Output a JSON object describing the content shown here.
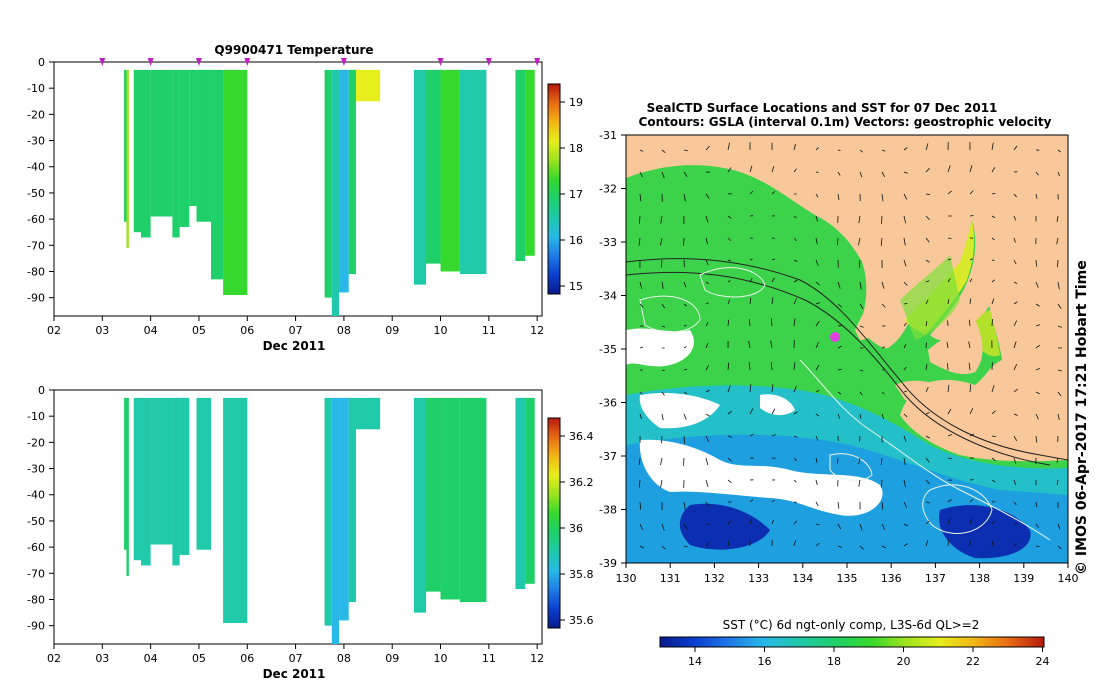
{
  "colors": {
    "land": "#f9c89a",
    "cmap": [
      "#0a1a8c",
      "#0b3fd0",
      "#1e7be6",
      "#29b8e8",
      "#1fc9a9",
      "#1fcf6a",
      "#35d92e",
      "#9be31f",
      "#e6ee1c",
      "#f2b617",
      "#e86a14",
      "#b61a0e"
    ]
  },
  "panel_top": {
    "title": "Q9900471  Temperature",
    "xlabel": "Dec 2011",
    "x_ticks": [
      "02",
      "03",
      "04",
      "05",
      "06",
      "07",
      "08",
      "09",
      "10",
      "11",
      "12"
    ],
    "y_ticks": [
      "0",
      "-10",
      "-20",
      "-30",
      "-40",
      "-50",
      "-60",
      "-70",
      "-80",
      "-90"
    ],
    "cbar_ticks": [
      "19",
      "18",
      "17",
      "16",
      "15"
    ]
  },
  "panel_bottom": {
    "xlabel": "Dec 2011",
    "x_ticks": [
      "02",
      "03",
      "04",
      "05",
      "06",
      "07",
      "08",
      "09",
      "10",
      "11",
      "12"
    ],
    "y_ticks": [
      "0",
      "-10",
      "-20",
      "-30",
      "-40",
      "-50",
      "-60",
      "-70",
      "-80",
      "-90"
    ],
    "cbar_ticks": [
      "36.4",
      "36.2",
      "36",
      "35.8",
      "35.6"
    ]
  },
  "map": {
    "title1": "SealCTD Surface Locations and SST for 07 Dec 2011",
    "title2": "Contours: GSLA (interval 0.1m) Vectors: geostrophic velocity",
    "x_ticks": [
      "130",
      "131",
      "132",
      "133",
      "134",
      "135",
      "136",
      "137",
      "138",
      "139",
      "140"
    ],
    "y_ticks": [
      "-31",
      "-32",
      "-33",
      "-34",
      "-35",
      "-36",
      "-37",
      "-38",
      "-39"
    ],
    "side_label": "© IMOS 06-Apr-2017 17:21 Hobart Time",
    "cbar_title": "SST (°C) 6d ngt-only comp, L3S-6d QL>=2",
    "cbar_ticks": [
      "14",
      "16",
      "18",
      "20",
      "22",
      "24"
    ]
  },
  "chart_data": [
    {
      "type": "heatmap",
      "title": "Q9900471  Temperature",
      "xlabel": "Dec 2011",
      "ylabel": "",
      "xlim": [
        2,
        12.1
      ],
      "ylim": [
        -97,
        0
      ],
      "clim": [
        14.6,
        19.5
      ],
      "profile_days": [
        3,
        4,
        5,
        6,
        8,
        10,
        11,
        12
      ],
      "columns": [
        {
          "x0": 3.45,
          "x1": 3.5,
          "depth": -61,
          "value": 17.0
        },
        {
          "x0": 3.5,
          "x1": 3.55,
          "depth": -71,
          "value": 17.6
        },
        {
          "x0": 3.65,
          "x1": 3.8,
          "depth": -65,
          "value": 16.9
        },
        {
          "x0": 3.8,
          "x1": 4.0,
          "depth": -67,
          "value": 17.0
        },
        {
          "x0": 4.0,
          "x1": 4.45,
          "depth": -59,
          "value": 16.9
        },
        {
          "x0": 4.45,
          "x1": 4.6,
          "depth": -67,
          "value": 17.0
        },
        {
          "x0": 4.6,
          "x1": 4.8,
          "depth": -63,
          "value": 16.9
        },
        {
          "x0": 4.8,
          "x1": 4.95,
          "depth": -55,
          "value": 17.0
        },
        {
          "x0": 4.95,
          "x1": 5.25,
          "depth": -61,
          "value": 16.9
        },
        {
          "x0": 5.25,
          "x1": 5.5,
          "depth": -83,
          "value": 16.9
        },
        {
          "x0": 5.5,
          "x1": 6.0,
          "depth": -89,
          "value": 17.2
        },
        {
          "x0": 7.6,
          "x1": 7.75,
          "depth": -90,
          "value": 16.7
        },
        {
          "x0": 7.75,
          "x1": 7.9,
          "depth": -97,
          "value": 16.2
        },
        {
          "x0": 7.9,
          "x1": 8.1,
          "depth": -88,
          "value": 15.8
        },
        {
          "x0": 8.1,
          "x1": 8.25,
          "depth": -81,
          "value": 16.8
        },
        {
          "x0": 8.25,
          "x1": 8.75,
          "depth": -15,
          "value": 18.0
        },
        {
          "x0": 9.45,
          "x1": 9.7,
          "depth": -85,
          "value": 16.3
        },
        {
          "x0": 9.7,
          "x1": 10.0,
          "depth": -77,
          "value": 16.9
        },
        {
          "x0": 10.0,
          "x1": 10.4,
          "depth": -80,
          "value": 17.2
        },
        {
          "x0": 10.4,
          "x1": 10.95,
          "depth": -81,
          "value": 16.4
        },
        {
          "x0": 11.55,
          "x1": 11.75,
          "depth": -76,
          "value": 16.8
        },
        {
          "x0": 11.75,
          "x1": 11.95,
          "depth": -74,
          "value": 17.3
        }
      ]
    },
    {
      "type": "heatmap",
      "title": "",
      "xlabel": "Dec 2011",
      "ylabel": "",
      "xlim": [
        2,
        12.1
      ],
      "ylim": [
        -97,
        0
      ],
      "clim": [
        35.55,
        36.5
      ],
      "columns": [
        {
          "x0": 3.45,
          "x1": 3.5,
          "depth": -61,
          "value": 35.95
        },
        {
          "x0": 3.5,
          "x1": 3.55,
          "depth": -71,
          "value": 35.95
        },
        {
          "x0": 3.65,
          "x1": 3.8,
          "depth": -65,
          "value": 35.93
        },
        {
          "x0": 3.8,
          "x1": 4.0,
          "depth": -67,
          "value": 35.93
        },
        {
          "x0": 4.0,
          "x1": 4.45,
          "depth": -59,
          "value": 35.93
        },
        {
          "x0": 4.45,
          "x1": 4.6,
          "depth": -67,
          "value": 35.93
        },
        {
          "x0": 4.6,
          "x1": 4.8,
          "depth": -63,
          "value": 35.93
        },
        {
          "x0": 4.95,
          "x1": 5.25,
          "depth": -61,
          "value": 35.93
        },
        {
          "x0": 5.5,
          "x1": 6.0,
          "depth": -89,
          "value": 35.93
        },
        {
          "x0": 7.6,
          "x1": 7.75,
          "depth": -90,
          "value": 35.92
        },
        {
          "x0": 7.75,
          "x1": 7.9,
          "depth": -97,
          "value": 35.85
        },
        {
          "x0": 7.9,
          "x1": 8.1,
          "depth": -88,
          "value": 35.8
        },
        {
          "x0": 8.1,
          "x1": 8.25,
          "depth": -81,
          "value": 35.9
        },
        {
          "x0": 8.25,
          "x1": 8.75,
          "depth": -15,
          "value": 35.93
        },
        {
          "x0": 9.45,
          "x1": 9.7,
          "depth": -85,
          "value": 35.9
        },
        {
          "x0": 9.7,
          "x1": 10.0,
          "depth": -77,
          "value": 36.0
        },
        {
          "x0": 10.0,
          "x1": 10.4,
          "depth": -80,
          "value": 36.0
        },
        {
          "x0": 10.4,
          "x1": 10.95,
          "depth": -81,
          "value": 35.95
        },
        {
          "x0": 11.55,
          "x1": 11.75,
          "depth": -76,
          "value": 35.93
        },
        {
          "x0": 11.75,
          "x1": 11.95,
          "depth": -74,
          "value": 35.95
        }
      ]
    },
    {
      "type": "heatmap",
      "title": "SealCTD Surface Locations and SST for 07 Dec 2011",
      "subtitle": "Contours: GSLA (interval 0.1m) Vectors: geostrophic velocity",
      "xlabel": "",
      "ylabel": "",
      "xlim": [
        130,
        140
      ],
      "ylim": [
        -39,
        -31
      ],
      "clim": [
        13,
        24
      ],
      "seal_location": {
        "lon": 134.8,
        "lat": -34.8
      }
    }
  ]
}
